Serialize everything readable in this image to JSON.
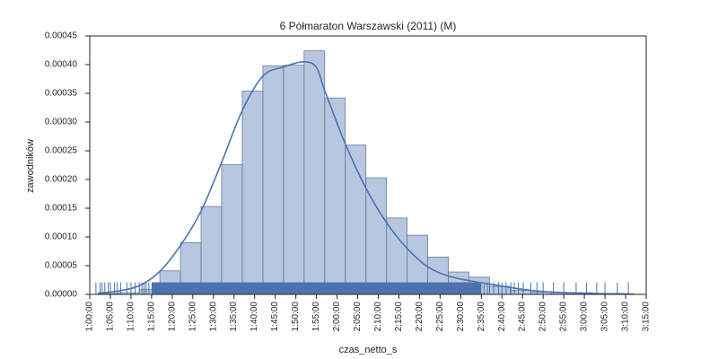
{
  "chart_data": {
    "type": "bar",
    "title": "6 Półmaraton Warszawski (2011) (M)",
    "xlabel": "czas_netto_s",
    "ylabel": "zawodników",
    "xlim": [
      "1:00:00",
      "3:15:00"
    ],
    "ylim": [
      0,
      0.00045
    ],
    "grid": false,
    "x_ticks": [
      "1:00:00",
      "1:05:00",
      "1:10:00",
      "1:15:00",
      "1:20:00",
      "1:25:00",
      "1:30:00",
      "1:35:00",
      "1:40:00",
      "1:45:00",
      "1:50:00",
      "1:55:00",
      "2:00:00",
      "2:05:00",
      "2:10:00",
      "2:15:00",
      "2:20:00",
      "2:25:00",
      "2:30:00",
      "2:35:00",
      "2:40:00",
      "2:45:00",
      "2:50:00",
      "2:55:00",
      "3:00:00",
      "3:05:00",
      "3:10:00",
      "3:15:00"
    ],
    "y_ticks": [
      "0.00000",
      "0.00005",
      "0.00010",
      "0.00015",
      "0.00020",
      "0.00025",
      "0.00030",
      "0.00035",
      "0.00040",
      "0.00045"
    ],
    "histogram": {
      "bin_starts": [
        "1:02:00",
        "1:07:00",
        "1:12:00",
        "1:17:00",
        "1:22:00",
        "1:27:00",
        "1:32:00",
        "1:37:00",
        "1:42:00",
        "1:47:00",
        "1:52:00",
        "1:57:00",
        "2:02:00",
        "2:07:00",
        "2:12:00",
        "2:17:00",
        "2:22:00",
        "2:27:00",
        "2:32:00",
        "2:37:00",
        "2:42:00",
        "2:47:00",
        "2:52:00",
        "2:57:00",
        "3:02:00",
        "3:07:00"
      ],
      "bin_width_min": 5,
      "values": [
        1.5e-06,
        3e-06,
        9e-06,
        4.1e-05,
        9e-05,
        0.000153,
        0.000226,
        0.000354,
        0.000398,
        0.000399,
        0.000424,
        0.000342,
        0.00026,
        0.000203,
        0.000133,
        0.000103,
        6.5e-05,
        3.9e-05,
        3e-05,
        1.4e-05,
        7e-06,
        4e-06,
        3e-06,
        3e-06,
        1.5e-06,
        1e-06
      ],
      "color": "#4c72b0",
      "alpha": 0.4
    },
    "kde": {
      "x": [
        "1:02:00",
        "1:07:00",
        "1:12:00",
        "1:17:00",
        "1:22:00",
        "1:27:00",
        "1:32:00",
        "1:37:00",
        "1:42:00",
        "1:47:00",
        "1:52:00",
        "1:55:00",
        "1:57:00",
        "2:02:00",
        "2:07:00",
        "2:12:00",
        "2:17:00",
        "2:22:00",
        "2:27:00",
        "2:32:00",
        "2:37:00",
        "2:42:00",
        "2:47:00",
        "2:52:00",
        "2:57:00",
        "3:02:00",
        "3:07:00",
        "3:12:00"
      ],
      "y": [
        2e-06,
        6e-06,
        1.5e-05,
        4e-05,
        8.5e-05,
        0.000145,
        0.00023,
        0.00032,
        0.00038,
        0.000396,
        0.000405,
        0.000395,
        0.000355,
        0.000262,
        0.000185,
        0.000125,
        8e-05,
        4.8e-05,
        3.2e-05,
        2.4e-05,
        1.8e-05,
        1.2e-05,
        7e-06,
        4e-06,
        2.5e-06,
        1.5e-06,
        1e-06,
        5e-07
      ],
      "color": "#4c72b0"
    },
    "rug": {
      "color": "#4c72b0",
      "height": 2.1e-05,
      "solid_range": [
        "1:15:00",
        "2:35:00"
      ],
      "sparse_ticks": [
        "1:01:30",
        "1:02:30",
        "1:03:00",
        "1:03:40",
        "1:04:30",
        "1:05:00",
        "1:06:00",
        "1:06:40",
        "1:07:30",
        "1:09:00",
        "1:10:00",
        "1:11:00",
        "1:12:00",
        "1:12:40",
        "1:13:10",
        "1:13:40",
        "1:14:20",
        "2:35:40",
        "2:36:30",
        "2:37:00",
        "2:38:00",
        "2:39:10",
        "2:40:00",
        "2:41:00",
        "2:42:10",
        "2:43:00",
        "2:44:00",
        "2:45:10",
        "2:47:00",
        "2:48:30",
        "2:50:00",
        "2:52:30",
        "2:55:00",
        "2:58:00",
        "3:00:30",
        "3:03:00",
        "3:05:00",
        "3:08:00",
        "3:10:40"
      ]
    }
  }
}
